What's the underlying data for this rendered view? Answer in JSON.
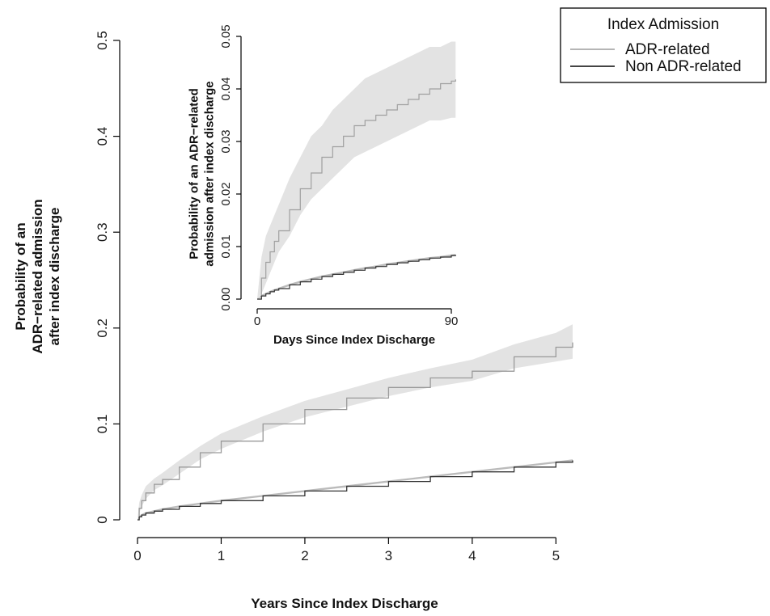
{
  "legend": {
    "title": "Index Admission",
    "items": [
      {
        "label": "ADR-related",
        "color": "#b5b5b5"
      },
      {
        "label": "Non ADR-related",
        "color": "#444444"
      }
    ]
  },
  "chart_data": [
    {
      "type": "line",
      "xlabel": "Years Since Index Discharge",
      "ylabel_lines": [
        "Probability of an",
        "ADR−related admission",
        "after index discharge"
      ],
      "xlim": [
        0,
        5.2
      ],
      "ylim": [
        0,
        0.5
      ],
      "xticks": [
        0,
        1,
        2,
        3,
        4,
        5
      ],
      "xtick_labels": [
        "0",
        "1",
        "2",
        "3",
        "4",
        "5"
      ],
      "yticks": [
        0,
        0.1,
        0.2,
        0.3,
        0.4,
        0.5
      ],
      "ytick_labels": [
        "0",
        "0.1",
        "0.2",
        "0.3",
        "0.4",
        "0.5"
      ],
      "series": [
        {
          "name": "ADR-related",
          "color": "#9a9a9a",
          "band_color": "#e3e3e3",
          "x": [
            0,
            0.02,
            0.05,
            0.1,
            0.2,
            0.3,
            0.5,
            0.75,
            1.0,
            1.5,
            2.0,
            2.5,
            3.0,
            3.5,
            4.0,
            4.5,
            5.0,
            5.2
          ],
          "y": [
            0,
            0.012,
            0.02,
            0.028,
            0.037,
            0.042,
            0.055,
            0.07,
            0.082,
            0.1,
            0.115,
            0.127,
            0.138,
            0.148,
            0.155,
            0.17,
            0.18,
            0.185
          ],
          "lower": [
            0,
            0.007,
            0.014,
            0.022,
            0.031,
            0.036,
            0.048,
            0.063,
            0.074,
            0.092,
            0.107,
            0.118,
            0.129,
            0.138,
            0.145,
            0.158,
            0.165,
            0.168
          ],
          "upper": [
            0,
            0.018,
            0.026,
            0.035,
            0.043,
            0.049,
            0.062,
            0.077,
            0.09,
            0.108,
            0.124,
            0.136,
            0.148,
            0.158,
            0.167,
            0.183,
            0.195,
            0.204
          ]
        },
        {
          "name": "Non ADR-related",
          "color": "#333333",
          "band_color": "#bbbbbb",
          "x": [
            0,
            0.02,
            0.05,
            0.1,
            0.2,
            0.3,
            0.5,
            0.75,
            1.0,
            1.5,
            2.0,
            2.5,
            3.0,
            3.5,
            4.0,
            4.5,
            5.0,
            5.2
          ],
          "y": [
            0,
            0.003,
            0.005,
            0.007,
            0.009,
            0.011,
            0.014,
            0.017,
            0.02,
            0.025,
            0.03,
            0.035,
            0.04,
            0.045,
            0.05,
            0.055,
            0.06,
            0.062
          ],
          "lower": [
            0,
            0.002,
            0.004,
            0.006,
            0.008,
            0.01,
            0.013,
            0.016,
            0.019,
            0.024,
            0.029,
            0.034,
            0.039,
            0.044,
            0.049,
            0.054,
            0.059,
            0.061
          ],
          "upper": [
            0,
            0.004,
            0.006,
            0.008,
            0.01,
            0.012,
            0.015,
            0.018,
            0.021,
            0.026,
            0.031,
            0.036,
            0.041,
            0.046,
            0.051,
            0.056,
            0.061,
            0.063
          ]
        }
      ]
    },
    {
      "type": "line",
      "xlabel": "Days Since Index Discharge",
      "ylabel_lines": [
        "Probability of an ADR−related",
        "admission after index discharge"
      ],
      "xlim": [
        -3,
        93
      ],
      "ylim": [
        0,
        0.05
      ],
      "xticks": [
        0,
        90
      ],
      "xtick_labels": [
        "0",
        "90"
      ],
      "yticks": [
        0,
        0.01,
        0.02,
        0.03,
        0.04,
        0.05
      ],
      "ytick_labels": [
        "0.00",
        "0.01",
        "0.02",
        "0.03",
        "0.04",
        "0.05"
      ],
      "series": [
        {
          "name": "ADR-related",
          "color": "#a0a0a0",
          "band_color": "#e3e3e3",
          "x": [
            0,
            2,
            4,
            6,
            8,
            10,
            15,
            20,
            25,
            30,
            35,
            40,
            45,
            50,
            55,
            60,
            65,
            70,
            75,
            80,
            85,
            90,
            92
          ],
          "y": [
            0,
            0.004,
            0.007,
            0.009,
            0.011,
            0.013,
            0.017,
            0.021,
            0.024,
            0.027,
            0.029,
            0.031,
            0.033,
            0.034,
            0.035,
            0.036,
            0.037,
            0.038,
            0.039,
            0.04,
            0.041,
            0.0415,
            0.0418
          ],
          "lower": [
            0,
            0.001,
            0.003,
            0.005,
            0.007,
            0.009,
            0.012,
            0.016,
            0.019,
            0.021,
            0.023,
            0.025,
            0.027,
            0.028,
            0.029,
            0.03,
            0.031,
            0.032,
            0.033,
            0.034,
            0.034,
            0.0345,
            0.0345
          ],
          "upper": [
            0,
            0.008,
            0.012,
            0.014,
            0.016,
            0.018,
            0.023,
            0.027,
            0.031,
            0.033,
            0.036,
            0.038,
            0.04,
            0.042,
            0.043,
            0.044,
            0.045,
            0.046,
            0.047,
            0.048,
            0.048,
            0.049,
            0.049
          ]
        },
        {
          "name": "Non ADR-related",
          "color": "#333333",
          "band_color": "#bbbbbb",
          "x": [
            0,
            2,
            4,
            6,
            8,
            10,
            15,
            20,
            25,
            30,
            35,
            40,
            45,
            50,
            55,
            60,
            65,
            70,
            75,
            80,
            85,
            90,
            92
          ],
          "y": [
            0,
            0.0006,
            0.001,
            0.0014,
            0.0017,
            0.002,
            0.0027,
            0.0033,
            0.0038,
            0.0043,
            0.0047,
            0.0051,
            0.0055,
            0.0059,
            0.0062,
            0.0066,
            0.0069,
            0.0072,
            0.0075,
            0.0078,
            0.008,
            0.0083,
            0.0084
          ],
          "lower": [
            0,
            0.0004,
            0.0008,
            0.0012,
            0.0015,
            0.0018,
            0.0025,
            0.0031,
            0.0036,
            0.0041,
            0.0045,
            0.0049,
            0.0053,
            0.0057,
            0.006,
            0.0064,
            0.0067,
            0.007,
            0.0073,
            0.0076,
            0.0078,
            0.0081,
            0.0082
          ],
          "upper": [
            0,
            0.0008,
            0.0012,
            0.0016,
            0.0019,
            0.0022,
            0.0029,
            0.0035,
            0.004,
            0.0045,
            0.0049,
            0.0053,
            0.0057,
            0.0061,
            0.0064,
            0.0068,
            0.0071,
            0.0074,
            0.0077,
            0.008,
            0.0082,
            0.0085,
            0.0086
          ]
        }
      ]
    }
  ]
}
